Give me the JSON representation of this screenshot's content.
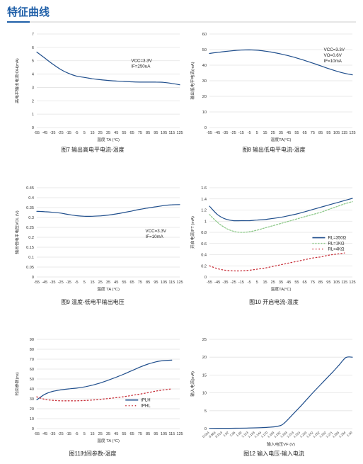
{
  "page": {
    "section_title": "特征曲线"
  },
  "chart_data": [
    {
      "id": "fig7",
      "type": "line",
      "caption": "图7 输出高电平电流-温度",
      "xlabel": "温度 TA (°C)",
      "ylabel": "高电平输出电流IOH(mA)",
      "x_ticks": [
        "-55",
        "-45",
        "-35",
        "-25",
        "-15",
        "-5",
        "5",
        "15",
        "25",
        "35",
        "45",
        "55",
        "65",
        "75",
        "85",
        "95",
        "105",
        "115",
        "125"
      ],
      "xlim": [
        -55,
        125
      ],
      "y_ticks": [
        "0",
        "1",
        "2",
        "3",
        "4",
        "5",
        "6",
        "7"
      ],
      "ylim": [
        0,
        7
      ],
      "grid": "horizontal",
      "annotations": [
        "VCC=3.3V",
        "IF=250uA"
      ],
      "legend": [],
      "series": [
        {
          "name": "",
          "color": "#1f4e8c",
          "dash": "",
          "x": [
            -55,
            -45,
            -35,
            -25,
            -15,
            -5,
            5,
            15,
            25,
            35,
            45,
            55,
            65,
            75,
            85,
            95,
            105,
            115,
            125
          ],
          "y": [
            5.65,
            5.2,
            4.75,
            4.35,
            4.05,
            3.85,
            3.75,
            3.65,
            3.58,
            3.52,
            3.48,
            3.45,
            3.42,
            3.4,
            3.4,
            3.4,
            3.38,
            3.3,
            3.2
          ]
        }
      ]
    },
    {
      "id": "fig8",
      "type": "line",
      "caption": "图8 输出低电平电流-温度",
      "xlabel": "温度TA(°C)",
      "ylabel": "输出低电平电流(mA)",
      "x_ticks": [
        "-55",
        "-45",
        "-35",
        "-25",
        "-15",
        "-5",
        "5",
        "15",
        "25",
        "35",
        "45",
        "55",
        "65",
        "75",
        "85",
        "95",
        "105",
        "115",
        "125"
      ],
      "xlim": [
        -55,
        125
      ],
      "y_ticks": [
        "0",
        "10",
        "20",
        "30",
        "40",
        "50",
        "60"
      ],
      "ylim": [
        0,
        60
      ],
      "grid": "horizontal",
      "annotations": [
        "VCC=3.3V",
        "VO=0.6V",
        "IF=10mA"
      ],
      "legend": [],
      "series": [
        {
          "name": "",
          "color": "#1f4e8c",
          "dash": "",
          "x": [
            -55,
            -45,
            -35,
            -25,
            -15,
            -5,
            5,
            15,
            25,
            35,
            45,
            55,
            65,
            75,
            85,
            95,
            105,
            115,
            125
          ],
          "y": [
            47.5,
            48.2,
            48.8,
            49.3,
            49.7,
            49.8,
            49.6,
            49.0,
            48.2,
            47.2,
            46.0,
            44.6,
            43.0,
            41.3,
            39.6,
            37.8,
            36.2,
            34.8,
            33.8
          ]
        }
      ]
    },
    {
      "id": "fig9",
      "type": "line",
      "caption": "图9 温度-低电平输出电压",
      "xlabel": "温度 TA (°C)",
      "ylabel": "输出低电平电压VOL (V)",
      "x_ticks": [
        "-55",
        "-45",
        "-35",
        "-25",
        "-15",
        "-5",
        "5",
        "15",
        "25",
        "35",
        "45",
        "55",
        "65",
        "75",
        "85",
        "95",
        "105",
        "115",
        "125"
      ],
      "xlim": [
        -55,
        125
      ],
      "y_ticks": [
        "0",
        "0.05",
        "0.1",
        "0.15",
        "0.2",
        "0.25",
        "0.3",
        "0.35",
        "0.4",
        "0.45"
      ],
      "ylim": [
        0,
        0.45
      ],
      "grid": "horizontal",
      "annotations": [
        "VCC=3.3V",
        "IF=10mA"
      ],
      "legend": [],
      "series": [
        {
          "name": "",
          "color": "#1f4e8c",
          "dash": "",
          "x": [
            -55,
            -45,
            -35,
            -25,
            -15,
            -5,
            5,
            15,
            25,
            35,
            45,
            55,
            65,
            75,
            85,
            95,
            105,
            115,
            125
          ],
          "y": [
            0.331,
            0.329,
            0.326,
            0.322,
            0.315,
            0.309,
            0.306,
            0.306,
            0.308,
            0.312,
            0.318,
            0.325,
            0.333,
            0.341,
            0.348,
            0.354,
            0.36,
            0.364,
            0.365
          ]
        }
      ]
    },
    {
      "id": "fig10",
      "type": "line",
      "caption": "图10 开启电流-温度",
      "xlabel": "温度TA(°C)",
      "ylabel": "开启电流IFT (mA)",
      "x_ticks": [
        "-55",
        "-45",
        "-35",
        "-25",
        "-15",
        "-5",
        "5",
        "15",
        "25",
        "35",
        "45",
        "55",
        "65",
        "75",
        "85",
        "95",
        "105",
        "115",
        "125"
      ],
      "xlim": [
        -55,
        125
      ],
      "y_ticks": [
        "0",
        "0.2",
        "0.4",
        "0.6",
        "0.8",
        "1",
        "1.2",
        "1.4",
        "1.6"
      ],
      "ylim": [
        0,
        1.6
      ],
      "grid": "horizontal",
      "annotations": [],
      "legend": [
        "RL=350Ω",
        "RL=1KΩ",
        "RL=4KΩ"
      ],
      "series": [
        {
          "name": "RL=350Ω",
          "color": "#1f4e8c",
          "dash": "",
          "x": [
            -55,
            -45,
            -35,
            -25,
            -15,
            -5,
            5,
            15,
            25,
            35,
            45,
            55,
            65,
            75,
            85,
            95,
            105,
            115,
            125
          ],
          "y": [
            1.27,
            1.12,
            1.04,
            1.01,
            1.01,
            1.01,
            1.02,
            1.03,
            1.05,
            1.07,
            1.1,
            1.13,
            1.17,
            1.21,
            1.25,
            1.29,
            1.33,
            1.37,
            1.41
          ]
        },
        {
          "name": "RL=1KΩ",
          "color": "#8ec98a",
          "dash": "2,2",
          "x": [
            -55,
            -45,
            -35,
            -25,
            -15,
            -5,
            5,
            15,
            25,
            35,
            45,
            55,
            65,
            75,
            85,
            95,
            105,
            115,
            125
          ],
          "y": [
            1.12,
            0.98,
            0.88,
            0.82,
            0.8,
            0.81,
            0.84,
            0.88,
            0.92,
            0.96,
            1.0,
            1.04,
            1.08,
            1.12,
            1.16,
            1.21,
            1.26,
            1.31,
            1.35
          ]
        },
        {
          "name": "RL=4KΩ",
          "color": "#c8303a",
          "dash": "1.5,3",
          "x": [
            -55,
            -45,
            -35,
            -25,
            -15,
            -5,
            5,
            15,
            25,
            35,
            45,
            55,
            65,
            75,
            85,
            95,
            105,
            115
          ],
          "y": [
            0.2,
            0.15,
            0.12,
            0.11,
            0.11,
            0.12,
            0.14,
            0.16,
            0.19,
            0.22,
            0.25,
            0.28,
            0.31,
            0.34,
            0.36,
            0.39,
            0.41,
            0.43
          ]
        }
      ]
    },
    {
      "id": "fig11",
      "type": "line",
      "caption": "图11时间参数-温度",
      "xlabel": "温度 TA (°C)",
      "ylabel": "时间参数(ns)",
      "x_ticks": [
        "-55",
        "-45",
        "-35",
        "-25",
        "-15",
        "-5",
        "5",
        "15",
        "25",
        "35",
        "45",
        "55",
        "65",
        "75",
        "85",
        "95",
        "105",
        "115",
        "125"
      ],
      "xlim": [
        -55,
        125
      ],
      "y_ticks": [
        "0",
        "10",
        "20",
        "30",
        "40",
        "50",
        "60",
        "70",
        "80",
        "90"
      ],
      "ylim": [
        0,
        90
      ],
      "grid": "horizontal",
      "annotations": [],
      "legend": [
        "tPLH",
        "tPHL"
      ],
      "series": [
        {
          "name": "tPLH",
          "color": "#1f4e8c",
          "dash": "",
          "x": [
            -55,
            -45,
            -35,
            -25,
            -15,
            -5,
            5,
            15,
            25,
            35,
            45,
            55,
            65,
            75,
            85,
            95,
            105,
            115
          ],
          "y": [
            29,
            34.5,
            37.5,
            39,
            40,
            40.8,
            42,
            43.8,
            46,
            48.8,
            51.8,
            55,
            58.5,
            62,
            65,
            67.3,
            68.6,
            69
          ]
        },
        {
          "name": "tPHL",
          "color": "#c8303a",
          "dash": "1.5,3",
          "x": [
            -55,
            -45,
            -35,
            -25,
            -15,
            -5,
            5,
            15,
            25,
            35,
            45,
            55,
            65,
            75,
            85,
            95,
            105,
            115
          ],
          "y": [
            32,
            29.5,
            28.5,
            28,
            28,
            28,
            28.3,
            28.8,
            29.5,
            30.3,
            31.2,
            32.2,
            33.5,
            34.8,
            36.2,
            37.8,
            39,
            40
          ]
        }
      ]
    },
    {
      "id": "fig12",
      "type": "line",
      "caption": "图12 输入电压-输入电流",
      "xlabel": "输入电压VF (V)",
      "ylabel": "输入电流(mA)",
      "x_ticks": [
        "0.014",
        "0.804",
        "0.913",
        "1.02",
        "1.06",
        "1.09",
        "1.113",
        "1.133",
        "1.144",
        "1.170",
        "1.183",
        "1.192",
        "1.203",
        "1.213",
        "1.224",
        "1.233",
        "1.242",
        "1.252",
        "1.262",
        "1.271",
        "1.283",
        "1.294",
        "1.30"
      ],
      "xlim": [
        0,
        22
      ],
      "y_ticks": [
        "0",
        "5",
        "10",
        "15",
        "20",
        "25"
      ],
      "ylim": [
        0,
        25
      ],
      "grid": "horizontal",
      "annotations": [],
      "legend": [],
      "series": [
        {
          "name": "",
          "color": "#1f4e8c",
          "dash": "",
          "x": [
            0,
            2,
            4,
            6,
            8,
            10,
            11,
            11.5,
            12,
            13,
            14,
            15,
            16,
            17,
            18,
            19,
            20,
            21,
            22
          ],
          "y": [
            0.05,
            0.08,
            0.1,
            0.15,
            0.25,
            0.5,
            0.9,
            1.5,
            2.4,
            4.3,
            6.2,
            8.2,
            10.2,
            12.1,
            14.0,
            15.9,
            17.9,
            19.9,
            20
          ]
        }
      ]
    }
  ]
}
